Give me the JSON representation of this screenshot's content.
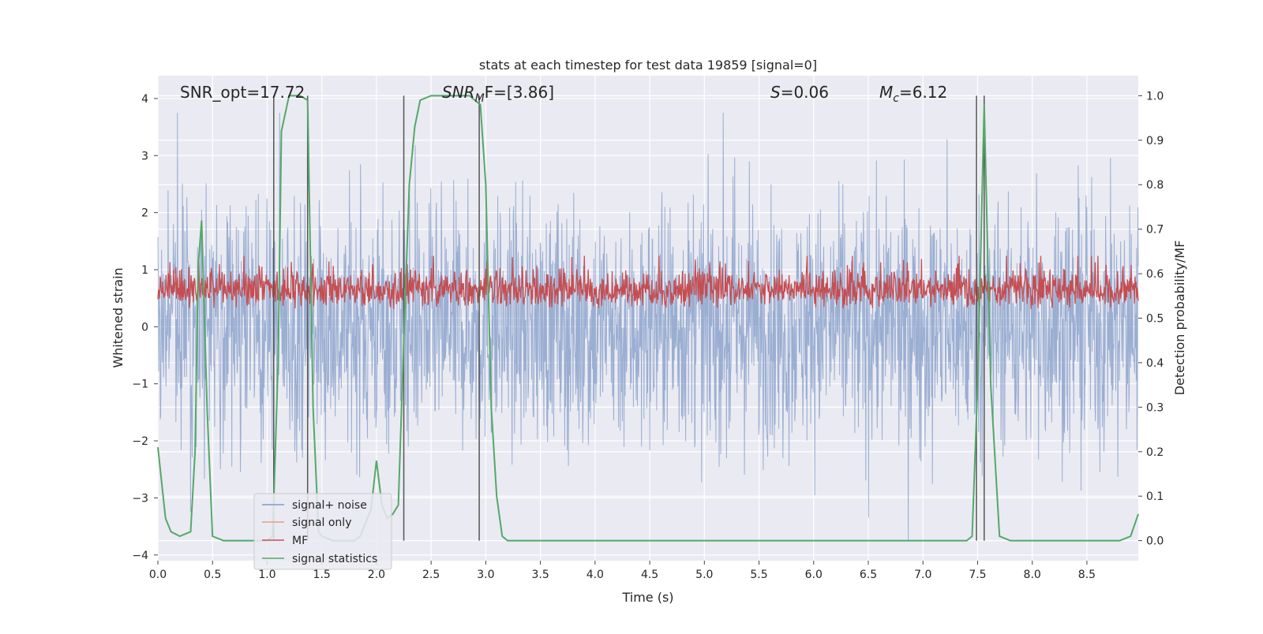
{
  "chart_data": {
    "type": "line",
    "title": "stats at each timestep for test data 19859 [signal=0]",
    "xlabel": "Time (s)",
    "ylabel_left": "Whitened strain",
    "ylabel_right": "Detection probability/MF",
    "xlim": [
      0.0,
      8.97
    ],
    "ylim_left": [
      -4.1,
      4.4
    ],
    "ylim_right": [
      -0.045,
      1.045
    ],
    "x_ticks": [
      "0.0",
      "0.5",
      "1.0",
      "1.5",
      "2.0",
      "2.5",
      "3.0",
      "3.5",
      "4.0",
      "4.5",
      "5.0",
      "5.5",
      "6.0",
      "6.5",
      "7.0",
      "7.5",
      "8.0",
      "8.5"
    ],
    "y_ticks_left": [
      "−4",
      "−3",
      "−2",
      "−1",
      "0",
      "1",
      "2",
      "3",
      "4"
    ],
    "y_ticks_right": [
      "0.0",
      "0.1",
      "0.2",
      "0.3",
      "0.4",
      "0.5",
      "0.6",
      "0.7",
      "0.8",
      "0.9",
      "1.0"
    ],
    "grid": true,
    "legend_position": "lower-left",
    "annotations": {
      "snr_opt": "SNR_opt=17.72",
      "snr_mf_italic": "SNR",
      "snr_mf_sub": "M",
      "snr_mf_rest": "F=[3.86]",
      "s_italic": "S",
      "s_rest": "=0.06",
      "mc_italic": "M",
      "mc_sub": "c",
      "mc_rest": "=6.12"
    },
    "series": [
      {
        "name": "signal+ noise",
        "color": "#7f9ac7",
        "axis": "left",
        "style": "dense noise, approx ±2.0 typical, peaks ±3.5"
      },
      {
        "name": "signal only",
        "color": "#e8a07e",
        "axis": "left"
      },
      {
        "name": "MF",
        "color": "#c44e52",
        "axis": "right",
        "style": "dense noise, 0.495–0.64"
      },
      {
        "name": "signal statistics",
        "color": "#55a868",
        "axis": "right",
        "x": [
          0.0,
          0.07,
          0.12,
          0.2,
          0.3,
          0.34,
          0.37,
          0.4,
          0.45,
          0.5,
          0.6,
          0.8,
          1.0,
          1.05,
          1.1,
          1.13,
          1.2,
          1.3,
          1.37,
          1.42,
          1.47,
          1.5,
          1.6,
          1.8,
          1.85,
          1.95,
          2.0,
          2.05,
          2.1,
          2.15,
          2.2,
          2.25,
          2.3,
          2.35,
          2.4,
          2.5,
          2.7,
          2.85,
          2.95,
          3.0,
          3.05,
          3.1,
          3.15,
          3.2,
          3.5,
          4.0,
          5.0,
          6.0,
          7.0,
          7.4,
          7.45,
          7.5,
          7.56,
          7.62,
          7.7,
          7.8,
          8.0,
          8.5,
          8.8,
          8.9,
          8.97
        ],
        "y": [
          0.21,
          0.05,
          0.02,
          0.01,
          0.02,
          0.2,
          0.62,
          0.72,
          0.3,
          0.01,
          0.0,
          0.0,
          0.0,
          0.01,
          0.4,
          0.92,
          1.0,
          1.0,
          0.99,
          0.3,
          0.02,
          0.01,
          0.0,
          0.0,
          0.01,
          0.07,
          0.18,
          0.08,
          0.05,
          0.06,
          0.08,
          0.45,
          0.8,
          0.93,
          0.99,
          1.0,
          1.0,
          1.0,
          0.98,
          0.8,
          0.3,
          0.1,
          0.01,
          0.0,
          0.0,
          0.0,
          0.0,
          0.0,
          0.0,
          0.0,
          0.01,
          0.35,
          0.98,
          0.35,
          0.01,
          0.0,
          0.0,
          0.0,
          0.0,
          0.01,
          0.06
        ]
      }
    ],
    "vertical_lines": [
      {
        "x": 1.06,
        "from": 0.0,
        "to": 1.0
      },
      {
        "x": 1.37,
        "from": 0.0,
        "to": 1.0
      },
      {
        "x": 2.25,
        "from": 0.0,
        "to": 1.0
      },
      {
        "x": 2.94,
        "from": 0.0,
        "to": 1.0
      },
      {
        "x": 7.49,
        "from": 0.0,
        "to": 1.0
      },
      {
        "x": 7.56,
        "from": 0.0,
        "to": 1.0
      }
    ],
    "colors": {
      "plot_background": "#eaeaf2",
      "grid": "#ffffff",
      "vline": "#555555"
    }
  }
}
